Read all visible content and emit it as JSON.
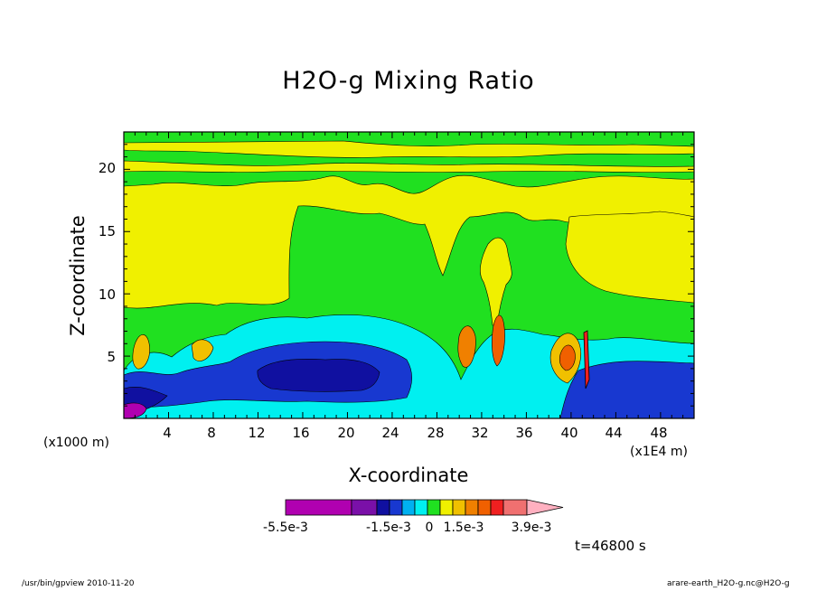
{
  "chart_data": {
    "type": "heatmap",
    "title": "H2O-g Mixing Ratio",
    "xlabel": "X-coordinate",
    "ylabel": "Z-coordinate",
    "x_unit_left": "(x1000 m)",
    "x_unit_right": "(x1E4 m)",
    "xlim": [
      0,
      51
    ],
    "ylim": [
      0,
      23
    ],
    "x_ticks": [
      "4",
      "8",
      "12",
      "16",
      "20",
      "24",
      "28",
      "32",
      "36",
      "40",
      "44",
      "48"
    ],
    "y_ticks": [
      "5",
      "10",
      "15",
      "20"
    ],
    "colorbar": {
      "colors": [
        "#b000b0",
        "#7a10a8",
        "#1010a0",
        "#1838d0",
        "#00b0f0",
        "#00f0f0",
        "#20e020",
        "#f0f000",
        "#f0c000",
        "#f08000",
        "#f06000",
        "#f02020",
        "#f07070",
        "#ffb0c0"
      ],
      "labels": [
        "-5.5e-3",
        "-1.5e-3",
        "0",
        "1.5e-3",
        "3.9e-3"
      ]
    },
    "time_label": "t=46800 s"
  },
  "footer": {
    "left": "/usr/bin/gpview  2010-11-20",
    "right": "arare-earth_H2O-g.nc@H2O-g"
  }
}
